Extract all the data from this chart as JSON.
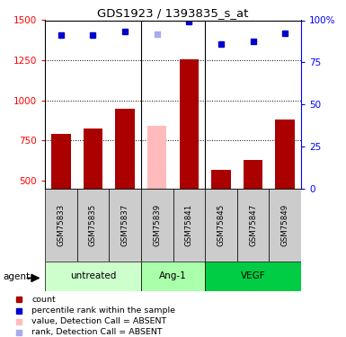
{
  "title": "GDS1923 / 1393835_s_at",
  "samples": [
    "GSM75833",
    "GSM75835",
    "GSM75837",
    "GSM75839",
    "GSM75841",
    "GSM75845",
    "GSM75847",
    "GSM75849"
  ],
  "bar_values": [
    790,
    825,
    950,
    840,
    1255,
    565,
    630,
    880
  ],
  "bar_colors": [
    "#aa0000",
    "#aa0000",
    "#aa0000",
    "#ffbbbb",
    "#aa0000",
    "#aa0000",
    "#aa0000",
    "#aa0000"
  ],
  "rank_values": [
    1410,
    1410,
    1430,
    1415,
    1490,
    1350,
    1370,
    1420
  ],
  "rank_colors": [
    "#0000cc",
    "#0000cc",
    "#0000cc",
    "#aaaaee",
    "#0000cc",
    "#0000cc",
    "#0000cc",
    "#0000cc"
  ],
  "ylim_left": [
    450,
    1500
  ],
  "ylim_right": [
    0,
    100
  ],
  "yticks_left": [
    500,
    750,
    1000,
    1250,
    1500
  ],
  "yticks_right": [
    0,
    25,
    50,
    75,
    100
  ],
  "groups": [
    {
      "label": "untreated",
      "indices": [
        0,
        1,
        2
      ],
      "color": "#ccffcc"
    },
    {
      "label": "Ang-1",
      "indices": [
        3,
        4
      ],
      "color": "#aaffaa"
    },
    {
      "label": "VEGF",
      "indices": [
        5,
        6,
        7
      ],
      "color": "#00cc44"
    }
  ],
  "agent_label": "agent",
  "legend_items": [
    {
      "label": "count",
      "color": "#aa0000"
    },
    {
      "label": "percentile rank within the sample",
      "color": "#0000cc"
    },
    {
      "label": "value, Detection Call = ABSENT",
      "color": "#ffbbbb"
    },
    {
      "label": "rank, Detection Call = ABSENT",
      "color": "#aaaaee"
    }
  ],
  "background_color": "#ffffff"
}
